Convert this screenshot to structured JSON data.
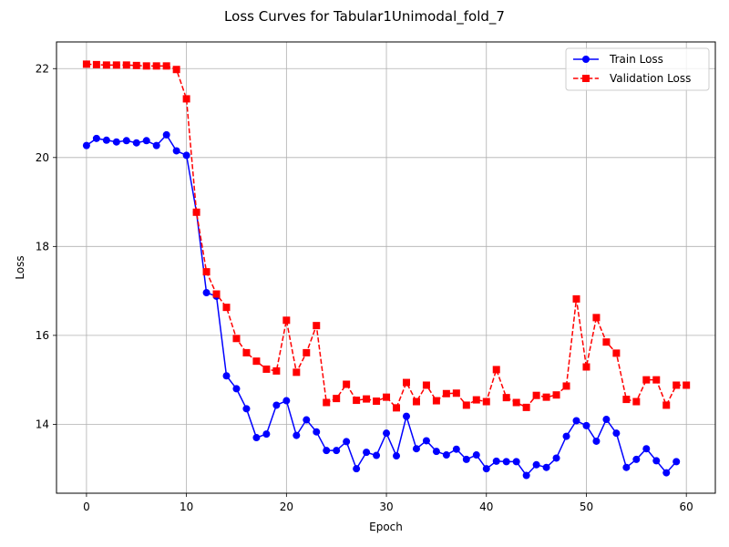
{
  "chart_data": {
    "type": "line",
    "title": "Loss Curves for Tabular1Unimodal_fold_7",
    "xlabel": "Epoch",
    "ylabel": "Loss",
    "xlim": [
      -3,
      62.9
    ],
    "ylim": [
      12.45,
      22.6
    ],
    "x_ticks": [
      0,
      10,
      20,
      30,
      40,
      50,
      60
    ],
    "y_ticks": [
      14,
      16,
      18,
      20,
      22
    ],
    "grid": true,
    "legend_position": "top-right",
    "series": [
      {
        "name": "Train Loss",
        "color": "#0000ff",
        "line_style": "solid",
        "marker": "circle",
        "x": [
          0,
          1,
          2,
          3,
          4,
          5,
          6,
          7,
          8,
          9,
          10,
          11,
          12,
          13,
          14,
          15,
          16,
          17,
          18,
          19,
          20,
          21,
          22,
          23,
          24,
          25,
          26,
          27,
          28,
          29,
          30,
          31,
          32,
          33,
          34,
          35,
          36,
          37,
          38,
          39,
          40,
          41,
          42,
          43,
          44,
          45,
          46,
          47,
          48,
          49,
          50,
          51,
          52,
          53,
          54,
          55,
          56,
          57,
          58,
          59
        ],
        "values": [
          20.27,
          20.43,
          20.39,
          20.35,
          20.38,
          20.33,
          20.38,
          20.27,
          20.51,
          20.15,
          20.05,
          18.77,
          16.96,
          16.88,
          15.09,
          14.8,
          14.35,
          13.7,
          13.78,
          14.43,
          14.53,
          13.75,
          14.1,
          13.83,
          13.41,
          13.41,
          13.61,
          13.0,
          13.37,
          13.3,
          13.8,
          13.29,
          14.18,
          13.45,
          13.63,
          13.39,
          13.31,
          13.44,
          13.21,
          13.31,
          13.0,
          13.17,
          13.16,
          13.16,
          12.85,
          13.09,
          13.03,
          13.24,
          13.73,
          14.08,
          13.97,
          13.62,
          14.11,
          13.8,
          13.03,
          13.21,
          13.45,
          13.18,
          12.91,
          13.16
        ]
      },
      {
        "name": "Validation Loss",
        "color": "#ff0000",
        "line_style": "dashed",
        "marker": "square",
        "x": [
          0,
          1,
          2,
          3,
          4,
          5,
          6,
          7,
          8,
          9,
          10,
          11,
          12,
          13,
          14,
          15,
          16,
          17,
          18,
          19,
          20,
          21,
          22,
          23,
          24,
          25,
          26,
          27,
          28,
          29,
          30,
          31,
          32,
          33,
          34,
          35,
          36,
          37,
          38,
          39,
          40,
          41,
          42,
          43,
          44,
          45,
          46,
          47,
          48,
          49,
          50,
          51,
          52,
          53,
          54,
          55,
          56,
          57,
          58,
          59,
          60
        ],
        "values": [
          22.1,
          22.09,
          22.08,
          22.08,
          22.08,
          22.07,
          22.06,
          22.06,
          22.06,
          21.98,
          21.32,
          18.77,
          17.43,
          16.93,
          16.63,
          15.93,
          15.61,
          15.42,
          15.24,
          15.2,
          16.34,
          15.17,
          15.61,
          16.22,
          14.49,
          14.58,
          14.9,
          14.54,
          14.57,
          14.52,
          14.61,
          14.37,
          14.94,
          14.51,
          14.88,
          14.53,
          14.69,
          14.7,
          14.43,
          14.55,
          14.51,
          15.23,
          14.6,
          14.49,
          14.38,
          14.65,
          14.61,
          14.66,
          14.86,
          16.82,
          15.29,
          16.4,
          15.85,
          15.6,
          14.56,
          14.51,
          15.0,
          15.0,
          14.43,
          14.88,
          14.88
        ]
      }
    ]
  }
}
